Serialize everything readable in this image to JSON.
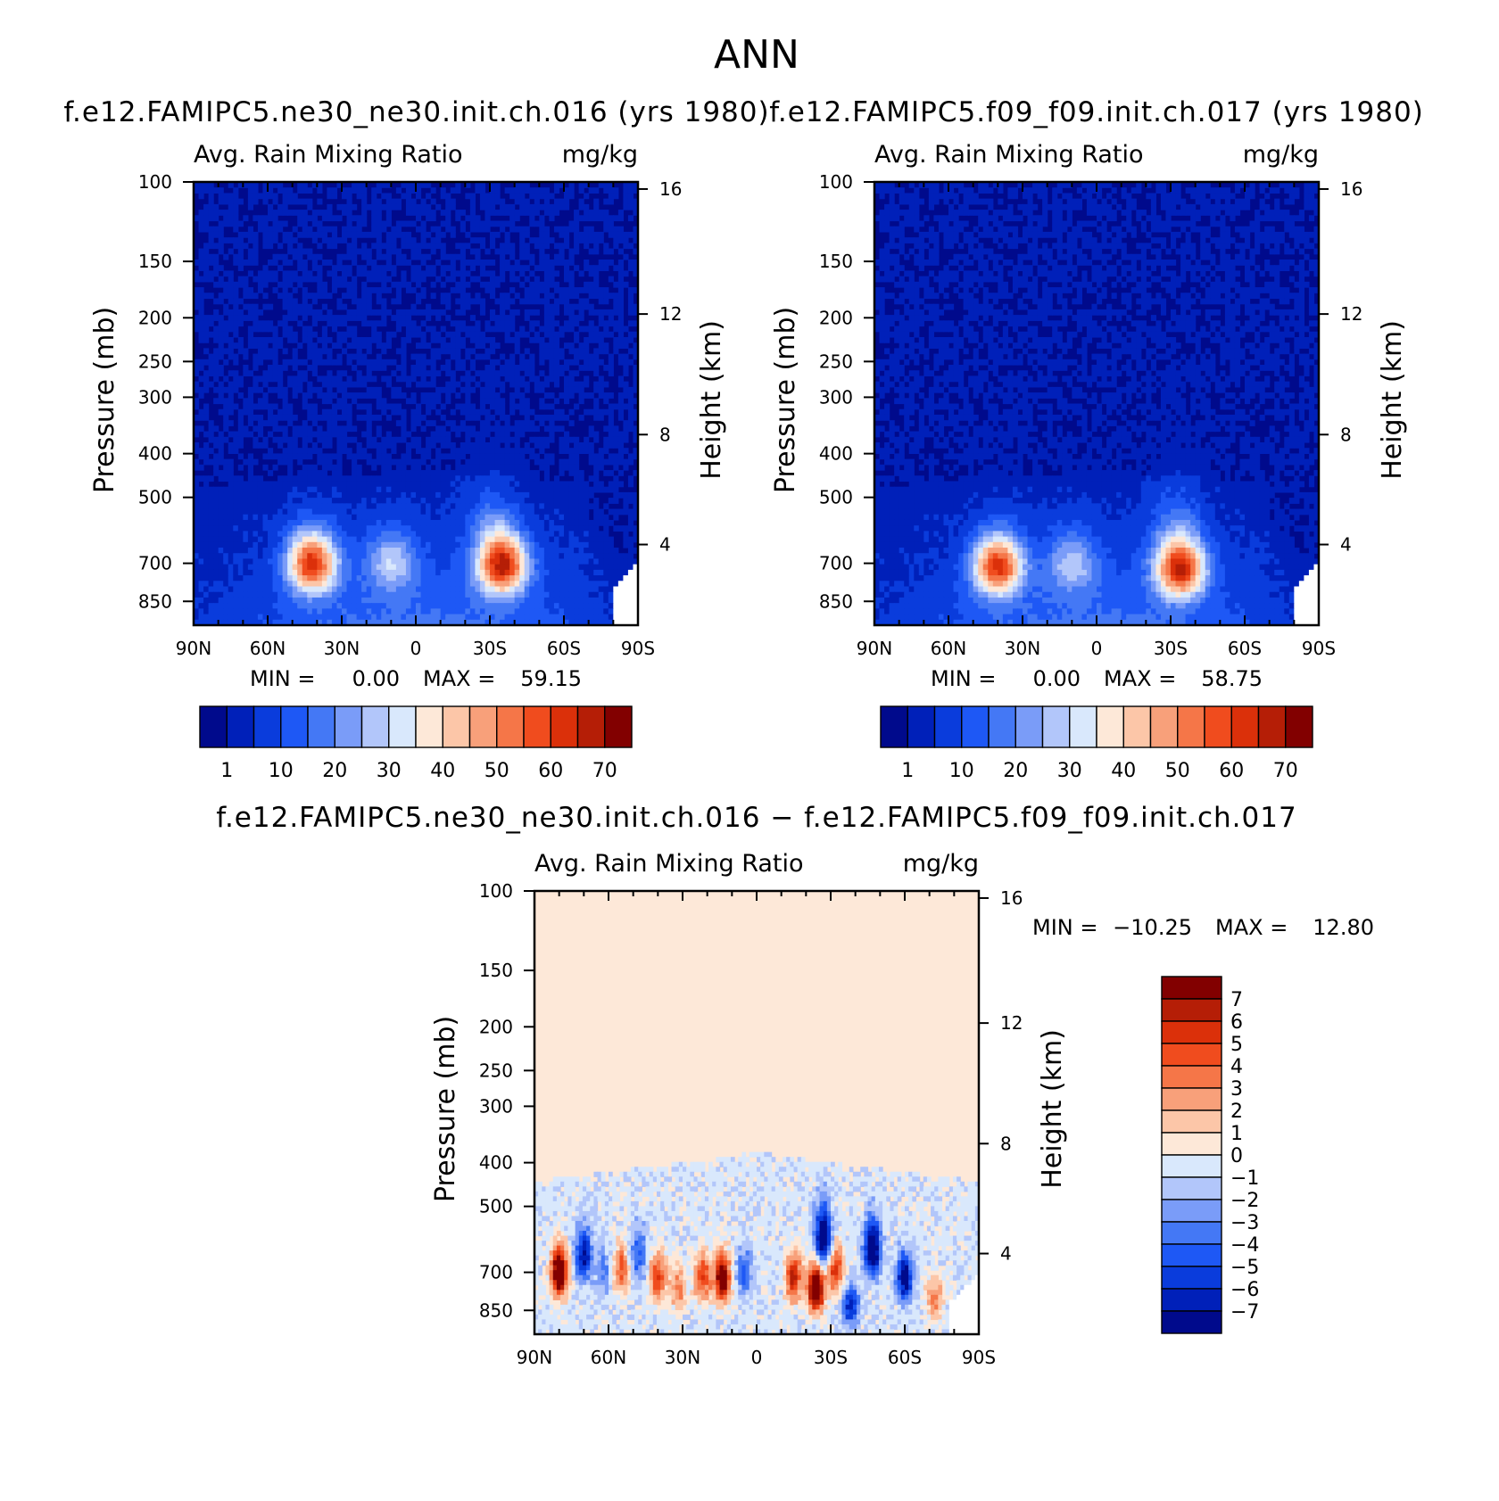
{
  "figure": {
    "title": "ANN",
    "diff_heading": "f.e12.FAMIPC5.ne30_ne30.init.ch.016 − f.e12.FAMIPC5.f09_f09.init.ch.017"
  },
  "chart_data": [
    {
      "type": "heatmap",
      "title": "f.e12.FAMIPC5.ne30_ne30.init.ch.016 (yrs 1980)",
      "subtitle": "Avg. Rain Mixing Ratio",
      "units": "mg/kg",
      "ylabel": "Pressure (mb)",
      "ylabel_right": "Height (km)",
      "x_ticks": [
        "90N",
        "60N",
        "30N",
        "0",
        "30S",
        "60S",
        "90S"
      ],
      "y_ticks": [
        "100",
        "150",
        "200",
        "250",
        "300",
        "400",
        "500",
        "700",
        "850"
      ],
      "y_ticks_right": [
        "16",
        "12",
        "8",
        "4"
      ],
      "min_label": "MIN =",
      "min_value": "0.00",
      "max_label": "MAX =",
      "max_value": "59.15",
      "colorbar_labels": [
        "1",
        "10",
        "20",
        "30",
        "40",
        "50",
        "60",
        "70"
      ],
      "colors": [
        "#000a8c",
        "#0020b9",
        "#0a3cdc",
        "#1e58f5",
        "#4478f5",
        "#7a9cf8",
        "#b2c6fa",
        "#d9e8fc",
        "#fde8d8",
        "#fcc6a8",
        "#f8a07a",
        "#f57648",
        "#f04c1e",
        "#db300a",
        "#b51e06",
        "#820000"
      ],
      "blobs": [
        {
          "lat": 42,
          "p": 700,
          "max": 56
        },
        {
          "lat": 10,
          "p": 695,
          "max": 22
        },
        {
          "lat": -35,
          "p": 705,
          "max": 59
        },
        {
          "lat": -30,
          "p": 560,
          "max": 9
        }
      ]
    },
    {
      "type": "heatmap",
      "title": "f.e12.FAMIPC5.f09_f09.init.ch.017 (yrs 1980)",
      "subtitle": "Avg. Rain Mixing Ratio",
      "units": "mg/kg",
      "ylabel": "Pressure (mb)",
      "ylabel_right": "Height (km)",
      "x_ticks": [
        "90N",
        "60N",
        "30N",
        "0",
        "30S",
        "60S",
        "90S"
      ],
      "y_ticks": [
        "100",
        "150",
        "200",
        "250",
        "300",
        "400",
        "500",
        "700",
        "850"
      ],
      "y_ticks_right": [
        "16",
        "12",
        "8",
        "4"
      ],
      "min_label": "MIN =",
      "min_value": "0.00",
      "max_label": "MAX =",
      "max_value": "58.75",
      "colorbar_labels": [
        "1",
        "10",
        "20",
        "30",
        "40",
        "50",
        "60",
        "70"
      ],
      "colors": [
        "#000a8c",
        "#0020b9",
        "#0a3cdc",
        "#1e58f5",
        "#4478f5",
        "#7a9cf8",
        "#b2c6fa",
        "#d9e8fc",
        "#fde8d8",
        "#fcc6a8",
        "#f8a07a",
        "#f57648",
        "#f04c1e",
        "#db300a",
        "#b51e06",
        "#820000"
      ],
      "blobs": [
        {
          "lat": 40,
          "p": 710,
          "max": 55
        },
        {
          "lat": 10,
          "p": 700,
          "max": 20
        },
        {
          "lat": -34,
          "p": 720,
          "max": 58
        },
        {
          "lat": -32,
          "p": 560,
          "max": 9
        }
      ]
    },
    {
      "type": "heatmap",
      "title": "f.e12.FAMIPC5.ne30_ne30.init.ch.016 − f.e12.FAMIPC5.f09_f09.init.ch.017",
      "subtitle": "Avg. Rain Mixing Ratio",
      "units": "mg/kg",
      "ylabel": "Pressure (mb)",
      "ylabel_right": "Height (km)",
      "x_ticks": [
        "90N",
        "60N",
        "30N",
        "0",
        "30S",
        "60S",
        "90S"
      ],
      "y_ticks": [
        "100",
        "150",
        "200",
        "250",
        "300",
        "400",
        "500",
        "700",
        "850"
      ],
      "y_ticks_right": [
        "16",
        "12",
        "8",
        "4"
      ],
      "min_label": "MIN =",
      "min_value": "−10.25",
      "max_label": "MAX =",
      "max_value": "12.80",
      "colorbar_labels": [
        "7",
        "6",
        "5",
        "4",
        "3",
        "2",
        "1",
        "0",
        "−1",
        "−2",
        "−3",
        "−4",
        "−5",
        "−6",
        "−7"
      ],
      "colors": [
        "#820000",
        "#b51e06",
        "#db300a",
        "#f04c1e",
        "#f57648",
        "#f8a07a",
        "#fcc6a8",
        "#fde8d8",
        "#d9e8fc",
        "#b2c6fa",
        "#7a9cf8",
        "#4478f5",
        "#1e58f5",
        "#0a3cdc",
        "#0020b9",
        "#000a8c"
      ],
      "anomalies": [
        {
          "lat": 80,
          "p": 700,
          "v": 11
        },
        {
          "lat": 70,
          "p": 640,
          "v": -7
        },
        {
          "lat": 62,
          "p": 700,
          "v": -3
        },
        {
          "lat": 55,
          "p": 690,
          "v": 5
        },
        {
          "lat": 48,
          "p": 640,
          "v": -4
        },
        {
          "lat": 40,
          "p": 720,
          "v": 6
        },
        {
          "lat": 32,
          "p": 760,
          "v": 4
        },
        {
          "lat": 22,
          "p": 720,
          "v": 6
        },
        {
          "lat": 14,
          "p": 720,
          "v": 10
        },
        {
          "lat": 5,
          "p": 700,
          "v": -4
        },
        {
          "lat": -15,
          "p": 720,
          "v": 7
        },
        {
          "lat": -24,
          "p": 760,
          "v": 12
        },
        {
          "lat": -27,
          "p": 580,
          "v": -9
        },
        {
          "lat": -32,
          "p": 690,
          "v": 6
        },
        {
          "lat": -38,
          "p": 830,
          "v": -6
        },
        {
          "lat": -47,
          "p": 620,
          "v": -10
        },
        {
          "lat": -60,
          "p": 720,
          "v": -8
        },
        {
          "lat": -72,
          "p": 800,
          "v": 4
        }
      ]
    }
  ]
}
